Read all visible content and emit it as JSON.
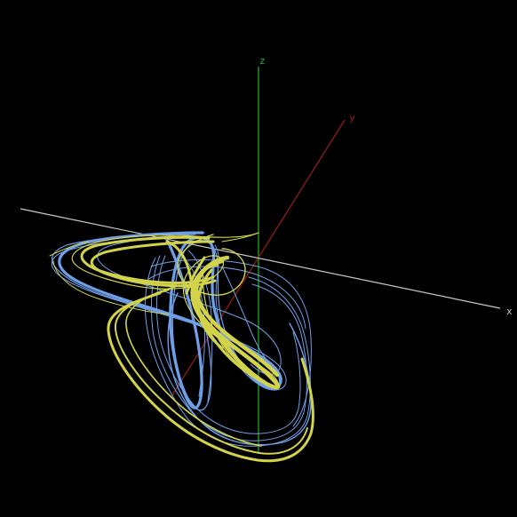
{
  "axes": {
    "x": {
      "label": "x",
      "color": "#c8c8c8"
    },
    "y": {
      "label": "y",
      "color": "#8b1a1a"
    },
    "z": {
      "label": "z",
      "color": "#29b12a"
    }
  },
  "trajectories": [
    {
      "name": "",
      "color": "#6f9fe8"
    },
    {
      "name": "",
      "color": "#d2d34a"
    }
  ]
}
